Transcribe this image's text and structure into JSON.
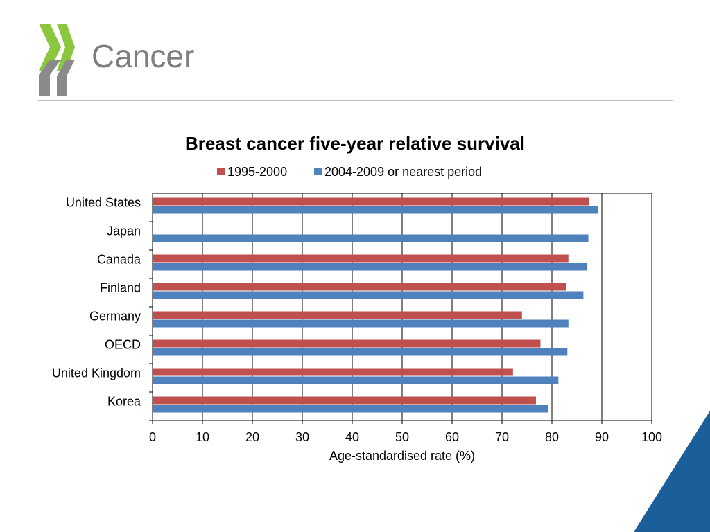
{
  "slide": {
    "title": "Cancer"
  },
  "colors": {
    "series_1995": "#c0504d",
    "series_2004": "#4f81bd",
    "logo_green": "#8cc63f",
    "logo_gray": "#8a8a8a",
    "corner_blue": "#1b5f9a"
  },
  "chart_data": {
    "type": "bar",
    "orientation": "horizontal",
    "title": "Breast cancer five-year relative survival",
    "xlabel": "Age-standardised rate (%)",
    "ylabel": "",
    "xlim": [
      0,
      100
    ],
    "xticks": [
      "0",
      "10",
      "20",
      "30",
      "40",
      "50",
      "60",
      "70",
      "80",
      "90",
      "100"
    ],
    "grid": true,
    "legend_position": "top",
    "categories": [
      "United States",
      "Japan",
      "Canada",
      "Finland",
      "Germany",
      "OECD",
      "United Kingdom",
      "Korea"
    ],
    "series": [
      {
        "name": "1995-2000",
        "values": [
          87.5,
          null,
          83.3,
          82.8,
          74.0,
          77.7,
          72.2,
          76.8
        ]
      },
      {
        "name": "2004-2009 or nearest period",
        "values": [
          89.3,
          87.3,
          87.1,
          86.3,
          83.3,
          83.1,
          81.3,
          79.3
        ]
      }
    ]
  }
}
